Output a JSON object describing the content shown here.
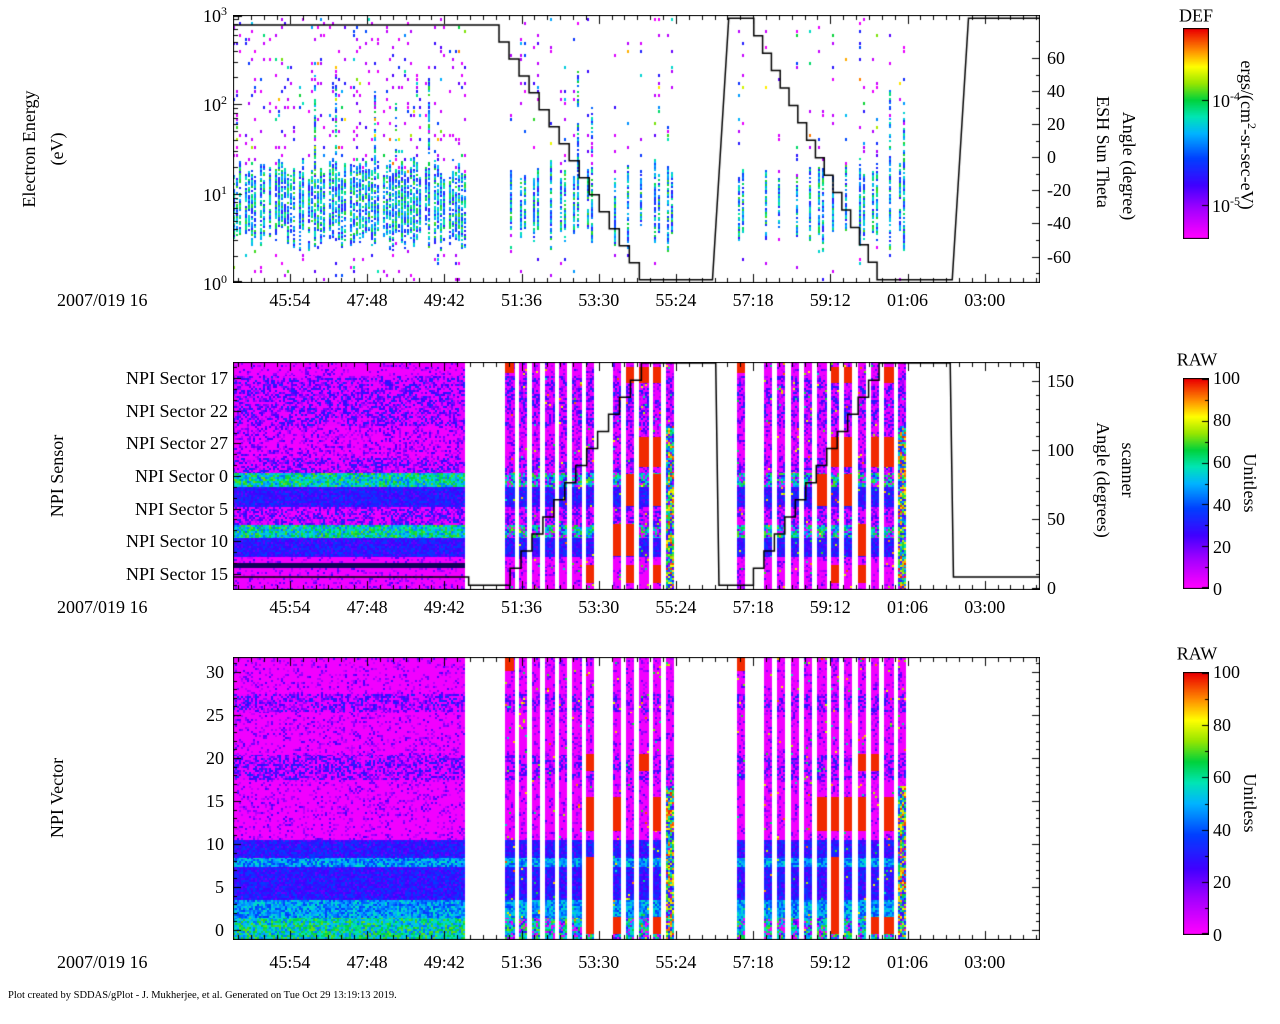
{
  "figure": {
    "footer": "Plot created by SDDAS/gPlot - J. Mukherjee, et al.  Generated on Tue Oct 29 13:19:13 2019.",
    "background": "#ffffff"
  },
  "time_axis": {
    "label": "2007/019 16",
    "tick_labels": [
      "45:54",
      "47:48",
      "49:42",
      "51:36",
      "53:30",
      "55:24",
      "57:18",
      "59:12",
      "01:06",
      "03:00"
    ],
    "tick_minutes": [
      45.9,
      47.8,
      49.7,
      51.6,
      53.5,
      55.4,
      57.3,
      59.2,
      61.1,
      63.0
    ],
    "range_minutes": [
      44.5,
      64.36
    ],
    "minor_divisions": 6
  },
  "colormap": {
    "stops": [
      [
        0.0,
        "#ff00ff"
      ],
      [
        0.14,
        "#a000ff"
      ],
      [
        0.25,
        "#4000ff"
      ],
      [
        0.38,
        "#0040ff"
      ],
      [
        0.5,
        "#00b4ff"
      ],
      [
        0.58,
        "#00e6b4"
      ],
      [
        0.66,
        "#00d23c"
      ],
      [
        0.74,
        "#96e600"
      ],
      [
        0.82,
        "#ffff00"
      ],
      [
        0.9,
        "#ff8c00"
      ],
      [
        1.0,
        "#eb0000"
      ]
    ],
    "dark_band": "#10005a"
  },
  "chart_data": [
    {
      "id": "electron-energy-spectrogram",
      "type": "heatmap",
      "ylabel_lines": [
        "Electron Energy",
        "(eV)"
      ],
      "y_axis": {
        "scale": "log",
        "unit": "eV",
        "exp_values": [
          3,
          2,
          1,
          0
        ],
        "ticks": [
          {
            "base": "10",
            "exp": "3"
          },
          {
            "base": "10",
            "exp": "2"
          },
          {
            "base": "10",
            "exp": "1"
          },
          {
            "base": "10",
            "exp": "0"
          }
        ]
      },
      "right_axis": {
        "name_lines": [
          "ESH Sun Theta",
          "Angle (degree)"
        ],
        "ticks": [
          60,
          40,
          20,
          0,
          -20,
          -40,
          -60
        ],
        "top_value": 86,
        "bottom_value": -76
      },
      "colorbar": {
        "title": "DEF",
        "unit_parts": [
          "ergs/(cm",
          "2",
          "-sr-sec-eV)"
        ],
        "ticks": [
          {
            "base": "10",
            "exp": "-4",
            "frac": 0.34
          },
          {
            "base": "10",
            "exp": "-5",
            "frac": 0.84
          }
        ]
      },
      "regions": [
        {
          "t0": 44.5,
          "t1": 50.2,
          "mode": "continuous"
        },
        {
          "t0": 51.2,
          "t1": 55.35,
          "mode": "striped"
        },
        {
          "t0": 56.9,
          "t1": 61.05,
          "mode": "striped"
        }
      ],
      "line_segments": [
        {
          "type": "flat",
          "t0": 44.5,
          "t1": 50.8,
          "v": 80
        },
        {
          "type": "stair",
          "t0": 50.8,
          "t1": 54.5,
          "v0": 80,
          "v1": -74,
          "steps": 15
        },
        {
          "type": "flat",
          "t0": 54.5,
          "t1": 56.3,
          "v": -74
        },
        {
          "type": "ramp",
          "t0": 56.3,
          "t1": 56.7,
          "v0": -74,
          "v1": 84
        },
        {
          "type": "flat",
          "t0": 56.7,
          "t1": 57.1,
          "v": 84
        },
        {
          "type": "stair",
          "t0": 57.1,
          "t1": 60.35,
          "v0": 84,
          "v1": -74,
          "steps": 15
        },
        {
          "type": "flat",
          "t0": 60.35,
          "t1": 62.2,
          "v": -74
        },
        {
          "type": "ramp",
          "t0": 62.2,
          "t1": 62.6,
          "v0": -74,
          "v1": 84
        },
        {
          "type": "flat",
          "t0": 62.6,
          "t1": 64.36,
          "v": 84
        }
      ]
    },
    {
      "id": "npi-sensor-spectrogram",
      "type": "heatmap",
      "ylabel_lines": [
        "NPI Sensor"
      ],
      "y_axis": {
        "scale": "category",
        "labels": [
          "NPI Sector 17",
          "NPI Sector 22",
          "NPI Sector 27",
          "NPI Sector 0",
          "NPI Sector 5",
          "NPI Sector 10",
          "NPI Sector 15"
        ]
      },
      "right_axis": {
        "name_lines": [
          "Angle (degrees)",
          "scanner"
        ],
        "ticks": [
          150,
          100,
          50,
          0
        ],
        "top_value": 163,
        "bottom_value": 0
      },
      "colorbar": {
        "title": "RAW",
        "unit": "Unitless",
        "ticks": [
          100,
          80,
          60,
          40,
          20,
          0
        ]
      },
      "regions": [
        {
          "t0": 44.5,
          "t1": 50.2,
          "mode": "continuous"
        },
        {
          "t0": 51.2,
          "t1": 55.35,
          "mode": "striped"
        },
        {
          "t0": 56.9,
          "t1": 61.05,
          "mode": "striped"
        }
      ],
      "bands": [
        {
          "f0": 0.0,
          "f1": 0.06,
          "kind": "bg"
        },
        {
          "f0": 0.06,
          "f1": 0.28,
          "kind": "speckle"
        },
        {
          "f0": 0.28,
          "f1": 0.42,
          "kind": "speckle_sparse"
        },
        {
          "f0": 0.42,
          "f1": 0.487,
          "kind": "speckle"
        },
        {
          "f0": 0.487,
          "f1": 0.548,
          "kind": "bright"
        },
        {
          "f0": 0.548,
          "f1": 0.636,
          "kind": "blue"
        },
        {
          "f0": 0.636,
          "f1": 0.715,
          "kind": "speckle"
        },
        {
          "f0": 0.715,
          "f1": 0.772,
          "kind": "bright"
        },
        {
          "f0": 0.772,
          "f1": 0.855,
          "kind": "blue"
        },
        {
          "f0": 0.855,
          "f1": 0.882,
          "kind": "bg"
        },
        {
          "f0": 0.882,
          "f1": 0.904,
          "kind": "dark"
        },
        {
          "f0": 0.904,
          "f1": 1.0,
          "kind": "bg"
        }
      ],
      "red_groups": [
        [
          0.02,
          0.09
        ],
        [
          0.33,
          0.46
        ],
        [
          0.49,
          0.63
        ],
        [
          0.71,
          0.85
        ],
        [
          0.89,
          0.97
        ]
      ],
      "line_segments": [
        {
          "type": "flat",
          "t0": 44.5,
          "t1": 50.3,
          "v": 8
        },
        {
          "type": "flat",
          "t0": 50.3,
          "t1": 51.05,
          "v": 2
        },
        {
          "type": "stair",
          "t0": 51.05,
          "t1": 54.55,
          "v0": 2,
          "v1": 163,
          "steps": 13
        },
        {
          "type": "flat",
          "t0": 54.55,
          "t1": 56.38,
          "v": 163
        },
        {
          "type": "ramp",
          "t0": 56.38,
          "t1": 56.46,
          "v0": 163,
          "v1": 2
        },
        {
          "type": "flat",
          "t0": 56.46,
          "t1": 57.05,
          "v": 2
        },
        {
          "type": "stair",
          "t0": 57.05,
          "t1": 60.4,
          "v0": 2,
          "v1": 163,
          "steps": 13
        },
        {
          "type": "flat",
          "t0": 60.4,
          "t1": 62.15,
          "v": 163
        },
        {
          "type": "ramp",
          "t0": 62.15,
          "t1": 62.23,
          "v0": 163,
          "v1": 8
        },
        {
          "type": "flat",
          "t0": 62.23,
          "t1": 64.36,
          "v": 8
        }
      ]
    },
    {
      "id": "npi-vector-spectrogram",
      "type": "heatmap",
      "ylabel_lines": [
        "NPI Vector"
      ],
      "y_axis": {
        "scale": "linear",
        "ticks": [
          30,
          25,
          20,
          15,
          10,
          5,
          0
        ],
        "major_step": 5,
        "minor_step": 1,
        "range": [
          0,
          31
        ]
      },
      "colorbar": {
        "title": "RAW",
        "unit": "Unitless",
        "ticks": [
          100,
          80,
          60,
          40,
          20,
          0
        ]
      },
      "regions": [
        {
          "t0": 44.5,
          "t1": 50.2,
          "mode": "continuous"
        },
        {
          "t0": 51.2,
          "t1": 55.35,
          "mode": "striped"
        },
        {
          "t0": 56.9,
          "t1": 61.05,
          "mode": "striped"
        }
      ],
      "row_bands": [
        {
          "r0": 0,
          "r1": 1,
          "kind": "bright"
        },
        {
          "r0": 2,
          "r1": 3,
          "kind": "bright2"
        },
        {
          "r0": 4,
          "r1": 7,
          "kind": "blue"
        },
        {
          "r0": 8,
          "r1": 8,
          "kind": "bright2"
        },
        {
          "r0": 9,
          "r1": 10,
          "kind": "blue"
        },
        {
          "r0": 11,
          "r1": 17,
          "kind": "bg"
        },
        {
          "r0": 18,
          "r1": 20,
          "kind": "speckle"
        },
        {
          "r0": 21,
          "r1": 25,
          "kind": "bg"
        },
        {
          "r0": 26,
          "r1": 27,
          "kind": "speckle"
        },
        {
          "r0": 28,
          "r1": 31,
          "kind": "bg"
        }
      ],
      "red_row_groups": [
        [
          0,
          1
        ],
        [
          2,
          8
        ],
        [
          12,
          15
        ],
        [
          19,
          20
        ]
      ]
    }
  ]
}
